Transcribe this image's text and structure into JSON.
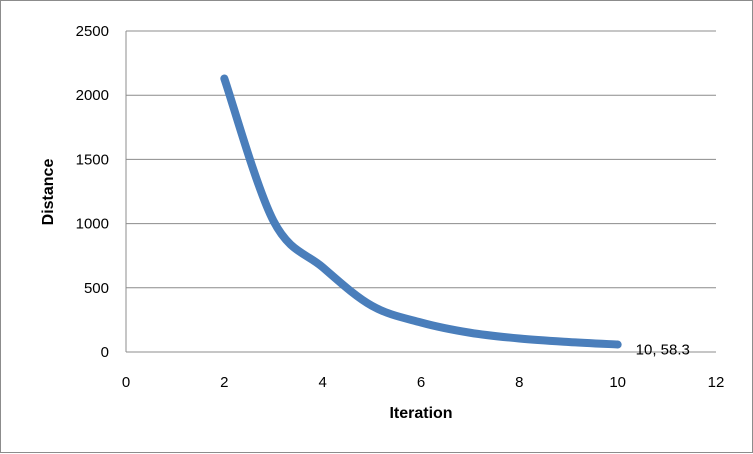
{
  "chart_data": {
    "type": "line",
    "title": "",
    "xlabel": "Iteration",
    "ylabel": "Distance",
    "xlim": [
      0,
      12
    ],
    "ylim": [
      0,
      2500
    ],
    "xticks": [
      0,
      2,
      4,
      6,
      8,
      10,
      12
    ],
    "yticks": [
      0,
      500,
      1000,
      1500,
      2000,
      2500
    ],
    "grid": "horizontal",
    "legend": "none",
    "series": [
      {
        "color": "#4a7ebb",
        "x": [
          2,
          3,
          4,
          5,
          6,
          7,
          8,
          9,
          10
        ],
        "y": [
          2130,
          1020,
          660,
          360,
          230,
          150,
          105,
          78,
          58.3
        ]
      }
    ],
    "annotations": [
      {
        "text": "10, 58.3",
        "x": 10,
        "y": 58.3
      }
    ]
  }
}
